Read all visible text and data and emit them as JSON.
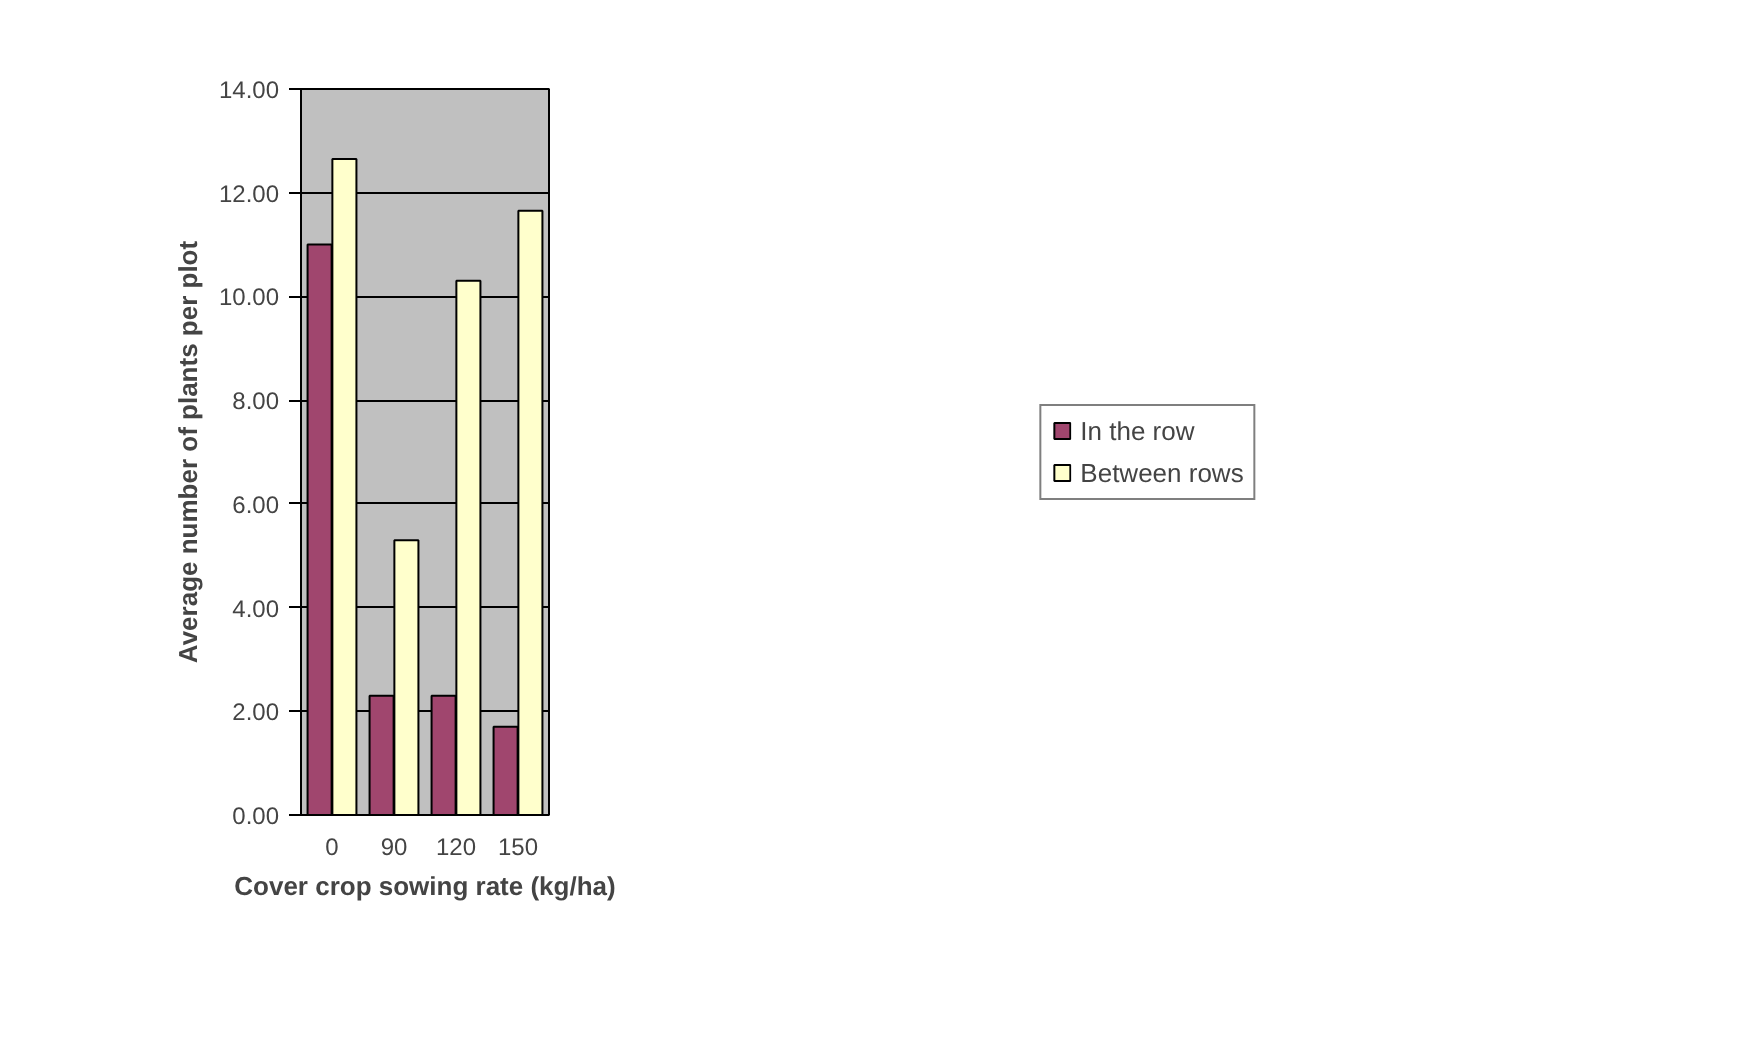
{
  "chart_data": {
    "type": "bar",
    "xlabel": "Cover crop sowing rate (kg/ha)",
    "ylabel": "Average number of plants per plot",
    "categories": [
      "0",
      "90",
      "120",
      "150"
    ],
    "series": [
      {
        "name": "In the row",
        "color": "#a0466e",
        "values": [
          11.0,
          2.3,
          2.3,
          1.7
        ]
      },
      {
        "name": "Between rows",
        "color": "#ffffcc",
        "values": [
          12.65,
          5.3,
          10.3,
          11.65
        ]
      }
    ],
    "ylim": [
      0,
      14
    ],
    "yticks": [
      {
        "value": 0,
        "label": "0.00"
      },
      {
        "value": 2,
        "label": "2.00"
      },
      {
        "value": 4,
        "label": "4.00"
      },
      {
        "value": 6,
        "label": "6.00"
      },
      {
        "value": 8,
        "label": "8.00"
      },
      {
        "value": 10,
        "label": "10.00"
      },
      {
        "value": 12,
        "label": "12.00"
      },
      {
        "value": 14,
        "label": "14.00"
      }
    ],
    "grid": "y",
    "legend": "right"
  }
}
